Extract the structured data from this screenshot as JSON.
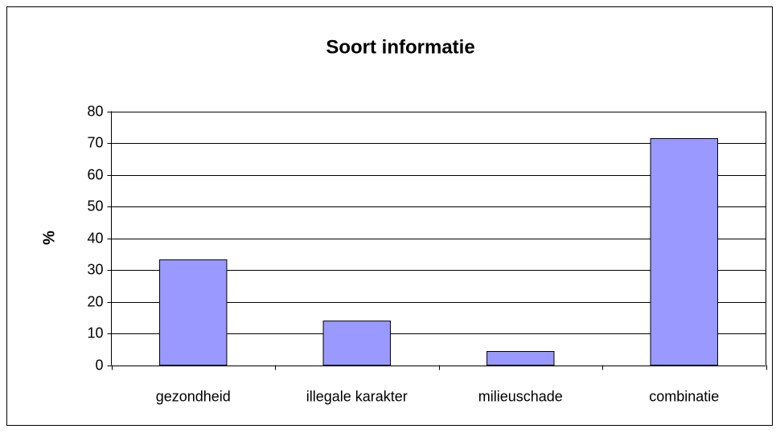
{
  "chart_data": {
    "type": "bar",
    "title": "Soort informatie",
    "y_label": "%",
    "categories": [
      "gezondheid",
      "illegale karakter",
      "milieuschade",
      "combinatie"
    ],
    "values": [
      33.2,
      13.9,
      4.3,
      71.4
    ],
    "color": "#9999ff",
    "ylim": [
      0,
      80
    ],
    "yticks": [
      0,
      10,
      20,
      30,
      40,
      50,
      60,
      70,
      80
    ],
    "grid": true
  }
}
